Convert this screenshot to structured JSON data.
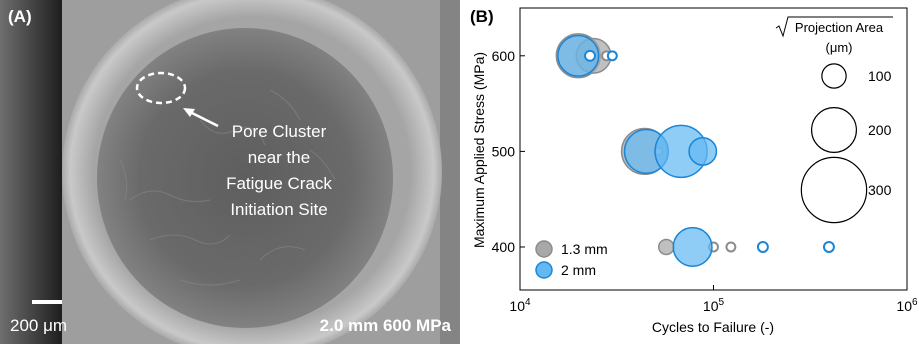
{
  "panel_a": {
    "label": "(A)",
    "annotation_lines": [
      "Pore Cluster",
      "near the",
      "Fatigue Crack",
      "Initiation Site"
    ],
    "scale_bar_label": "200 μm",
    "condition_label": "2.0 mm 600 MPa"
  },
  "chart_data": {
    "type": "scatter",
    "panel_label": "(B)",
    "xlabel": "Cycles to Failure (-)",
    "ylabel": "Maximum Applied Stress (MPa)",
    "xscale": "log",
    "xlim": [
      10000,
      1000000
    ],
    "ylim": [
      355,
      650
    ],
    "x_ticks": [
      10000,
      100000,
      1000000
    ],
    "x_tick_labels": [
      {
        "base": "10",
        "exp": "4"
      },
      {
        "base": "10",
        "exp": "5"
      },
      {
        "base": "10",
        "exp": "6"
      }
    ],
    "y_ticks": [
      400,
      500,
      600
    ],
    "y_tick_labels": [
      "400",
      "500",
      "600"
    ],
    "size_legend": {
      "title": "Projection Area",
      "unit": "(μm)",
      "sizes": [
        100,
        200,
        300
      ],
      "labels": [
        "100",
        "200",
        "300"
      ],
      "placement": "top-right"
    },
    "series_legend_placement": "bottom-left",
    "series": [
      {
        "name": "1.3 mm",
        "color": "#8c8c8c",
        "fill": "#a8a8a8",
        "points": [
          {
            "x": 20000,
            "y": 600,
            "size": 195
          },
          {
            "x": 24000,
            "y": 600,
            "size": 150
          },
          {
            "x": 28000,
            "y": 600,
            "size": 25
          },
          {
            "x": 44000,
            "y": 500,
            "size": 205
          },
          {
            "x": 52000,
            "y": 500,
            "size": 20
          },
          {
            "x": 57000,
            "y": 400,
            "size": 55
          },
          {
            "x": 100000,
            "y": 400,
            "size": 25
          },
          {
            "x": 123000,
            "y": 400,
            "size": 25
          }
        ]
      },
      {
        "name": "2 mm",
        "color": "#1a86d6",
        "fill": "#64b8f2",
        "points": [
          {
            "x": 20000,
            "y": 600,
            "size": 180
          },
          {
            "x": 23000,
            "y": 600,
            "size": 30
          },
          {
            "x": 30000,
            "y": 600,
            "size": 25
          },
          {
            "x": 45000,
            "y": 500,
            "size": 195
          },
          {
            "x": 68000,
            "y": 500,
            "size": 235
          },
          {
            "x": 88000,
            "y": 500,
            "size": 115
          },
          {
            "x": 78000,
            "y": 400,
            "size": 170
          },
          {
            "x": 180000,
            "y": 400,
            "size": 30
          },
          {
            "x": 395000,
            "y": 400,
            "size": 30
          }
        ]
      }
    ]
  }
}
